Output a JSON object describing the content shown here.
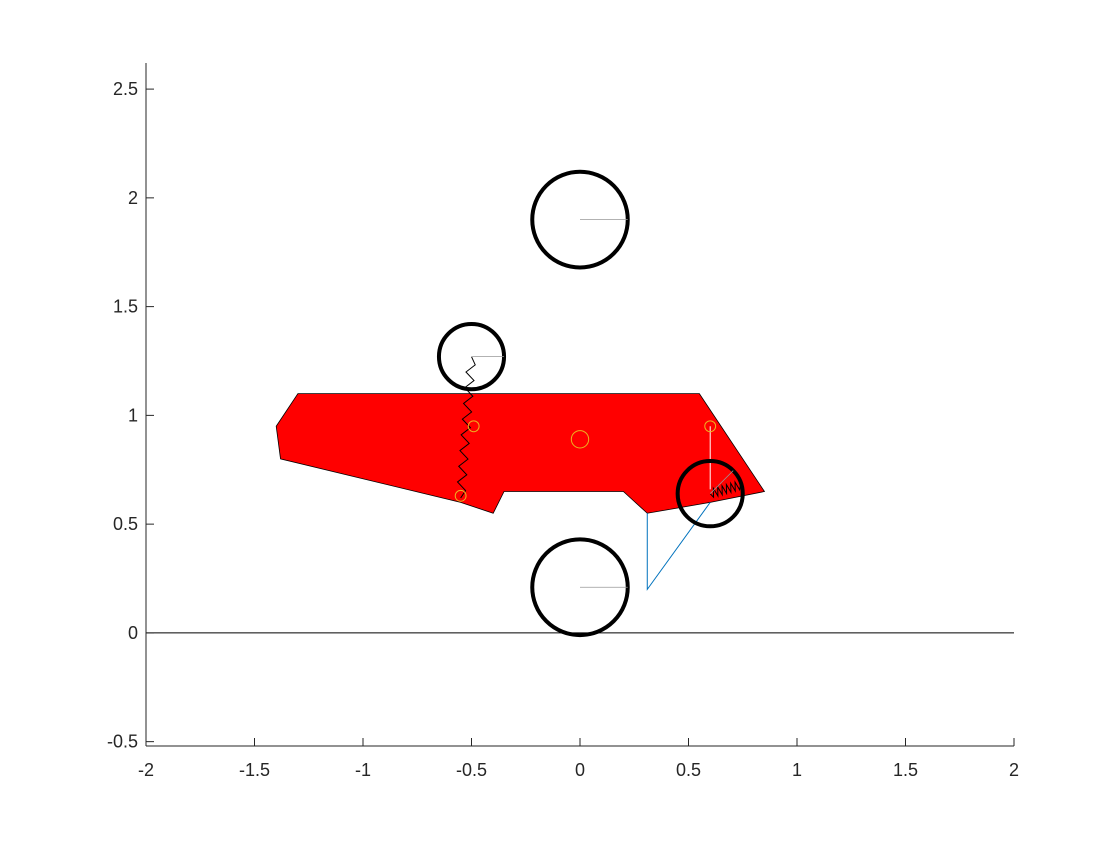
{
  "chart_data": {
    "type": "scatter",
    "title": "",
    "xlabel": "",
    "ylabel": "",
    "xlim": [
      -2,
      2
    ],
    "ylim": [
      -0.52,
      2.62
    ],
    "grid": false,
    "legend": "none",
    "x_ticks": [
      -2,
      -1.5,
      -1,
      -0.5,
      0,
      0.5,
      1,
      1.5,
      2
    ],
    "x_tick_labels": [
      "-2",
      "-1.5",
      "-1",
      "-0.5",
      "0",
      "0.5",
      "1",
      "1.5",
      "2"
    ],
    "y_ticks": [
      -0.5,
      0,
      0.5,
      1,
      1.5,
      2,
      2.5
    ],
    "y_tick_labels": [
      "-0.5",
      "0",
      "0.5",
      "1",
      "1.5",
      "2",
      "2.5"
    ],
    "colors": {
      "body": "#ff0000",
      "wheel": "#000000",
      "marker": "#edb120",
      "link": "#0072bd",
      "ground": "#000000",
      "axis": "#262626"
    },
    "ground_line": {
      "x": [
        -2,
        2
      ],
      "y": [
        0,
        0
      ]
    },
    "body_polygon": [
      [
        -1.3,
        1.1
      ],
      [
        0.55,
        1.1
      ],
      [
        0.85,
        0.65
      ],
      [
        0.6,
        0.6
      ],
      [
        0.31,
        0.55
      ],
      [
        0.2,
        0.65
      ],
      [
        -0.35,
        0.65
      ],
      [
        -0.4,
        0.55
      ],
      [
        -0.55,
        0.6
      ],
      [
        -1.38,
        0.8
      ],
      [
        -1.4,
        0.95
      ]
    ],
    "wheels": [
      {
        "name": "top",
        "cx": 0.0,
        "cy": 1.9,
        "r": 0.22,
        "spoke_angle": 0
      },
      {
        "name": "upper-left",
        "cx": -0.5,
        "cy": 1.27,
        "r": 0.15,
        "spoke_angle": 0
      },
      {
        "name": "bottom",
        "cx": 0.0,
        "cy": 0.21,
        "r": 0.22,
        "spoke_angle": 0
      },
      {
        "name": "right",
        "cx": 0.6,
        "cy": 0.64,
        "r": 0.15,
        "spoke_angle": 45
      }
    ],
    "markers": [
      {
        "x": 0.0,
        "y": 0.89,
        "r": 0.04
      },
      {
        "x": -0.49,
        "y": 0.95,
        "r": 0.025
      },
      {
        "x": -0.55,
        "y": 0.63,
        "r": 0.025
      },
      {
        "x": 0.6,
        "y": 0.95,
        "r": 0.025
      }
    ],
    "springs": [
      {
        "x1": -0.55,
        "y1": 0.62,
        "x2": -0.5,
        "y2": 1.27,
        "coils": 9,
        "amp": 0.02
      },
      {
        "x1": 0.6,
        "y1": 0.64,
        "x2": 0.74,
        "y2": 0.68,
        "coils": 7,
        "amp": 0.02
      }
    ],
    "thin_lines": [
      {
        "x": [
          0.6,
          0.6
        ],
        "y": [
          0.95,
          0.66
        ]
      }
    ],
    "links": [
      {
        "x": [
          0.31,
          0.31,
          0.6
        ],
        "y": [
          0.55,
          0.2,
          0.6
        ]
      }
    ]
  }
}
